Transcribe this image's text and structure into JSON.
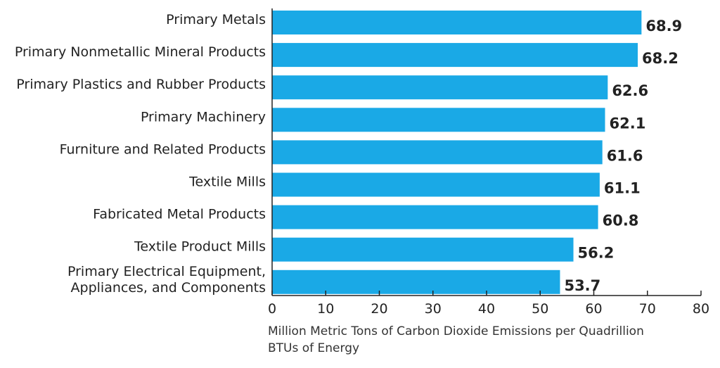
{
  "chart_data": {
    "type": "bar",
    "orientation": "horizontal",
    "categories": [
      [
        "Primary Metals"
      ],
      [
        "Primary Nonmetallic Mineral Products"
      ],
      [
        "Primary Plastics and Rubber Products"
      ],
      [
        "Primary Machinery"
      ],
      [
        "Furniture and Related Products"
      ],
      [
        "Textile Mills"
      ],
      [
        "Fabricated Metal Products"
      ],
      [
        "Textile Product Mills"
      ],
      [
        "Primary Electrical Equipment,",
        "Appliances, and Components"
      ]
    ],
    "values": [
      68.9,
      68.2,
      62.6,
      62.1,
      61.6,
      61.1,
      60.8,
      56.2,
      53.7
    ],
    "value_labels": [
      "68.9",
      "68.2",
      "62.6",
      "62.1",
      "61.6",
      "61.1",
      "60.8",
      "56.2",
      "53.7"
    ],
    "xlabel": [
      "Million Metric Tons of Carbon Dioxide Emissions per Quadrillion",
      "BTUs of Energy"
    ],
    "ylabel": "",
    "xlim": [
      0,
      80
    ],
    "xticks": [
      "0",
      "10",
      "20",
      "30",
      "40",
      "50",
      "60",
      "70",
      "80"
    ],
    "grid": false,
    "bar_color": "#1aa9e6"
  }
}
